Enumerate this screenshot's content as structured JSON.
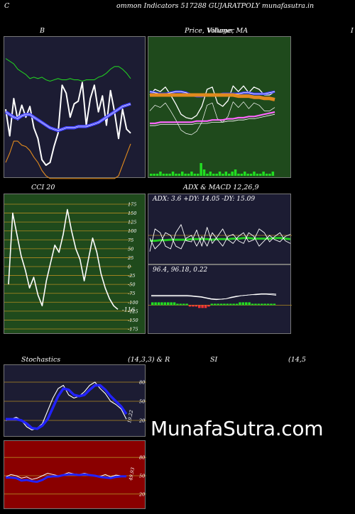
{
  "header": {
    "left_letter": "C",
    "title": "ommon  Indicators 517288  GUJARATPOLY munafasutra.in"
  },
  "labels": {
    "bb": "B",
    "price_title": "Price,  Volume,  MA",
    "price_title_overlap": "Villager",
    "right_edge": "I",
    "cci": "CCI 20",
    "adx_macd": "ADX  & MACD 12,26,9",
    "adx_values": "ADX: 3.6  +DY: 14.05 -DY: 15.09",
    "macd_values": "96.4,  96.18,  0.22",
    "stoch_left": "Stochastics",
    "stoch_params": "(14,3,3) & R",
    "rsi_label": "SI",
    "rsi_params": "(14,5"
  },
  "watermark": "MunafaSutra.com",
  "colors": {
    "panel_navy": "#1c1c33",
    "panel_green": "#1f4a1c",
    "panel_red": "#8a0000",
    "orange": "#e08a1e",
    "blue": "#2222ff",
    "bright_green": "#22dd22"
  },
  "chart_data": [
    {
      "type": "line",
      "name_ref": "bollinger",
      "ylim": [
        0,
        100
      ],
      "series": [
        {
          "role": "upper",
          "color": "#22cc22",
          "values": [
            88,
            86,
            84,
            80,
            78,
            76,
            73,
            74,
            73,
            74,
            72,
            71,
            72,
            73,
            72,
            72,
            73,
            72,
            72,
            71,
            72,
            72,
            72,
            74,
            75,
            77,
            80,
            82,
            82,
            80,
            77,
            73
          ]
        },
        {
          "role": "price",
          "color": "#ffffff",
          "values": [
            50,
            30,
            58,
            42,
            53,
            44,
            52,
            36,
            28,
            12,
            8,
            10,
            22,
            32,
            68,
            62,
            44,
            54,
            56,
            70,
            38,
            58,
            68,
            48,
            60,
            38,
            64,
            48,
            28,
            50,
            35,
            32
          ]
        },
        {
          "role": "middle",
          "color": "#3a3aff",
          "values": [
            48,
            46,
            44,
            43,
            45,
            46,
            46,
            44,
            42,
            40,
            38,
            36,
            35,
            34,
            35,
            36,
            36,
            36,
            37,
            37,
            37,
            38,
            39,
            40,
            42,
            44,
            46,
            48,
            50,
            52,
            53,
            54
          ]
        },
        {
          "role": "lower",
          "color": "#e08a1e",
          "values": [
            10,
            17,
            26,
            26,
            23,
            22,
            19,
            14,
            10,
            4,
            0,
            -2,
            -2,
            -2,
            -2,
            -2,
            -2,
            -2,
            -2,
            -2,
            -2,
            -2,
            -2,
            -2,
            -2,
            -2,
            -2,
            -2,
            0,
            8,
            16,
            24
          ]
        }
      ]
    },
    {
      "type": "line",
      "name_ref": "price_volume_ma",
      "ylim": [
        0,
        100
      ],
      "series": [
        {
          "role": "price",
          "color": "#ffffff",
          "values": [
            55,
            60,
            58,
            62,
            55,
            47,
            38,
            35,
            34,
            37,
            45,
            60,
            62,
            48,
            45,
            50,
            63,
            58,
            63,
            57,
            62,
            60,
            55,
            55,
            58
          ]
        },
        {
          "role": "ma_blue",
          "color": "#3a3aff",
          "values": [
            58,
            57,
            56,
            56,
            57,
            58,
            58,
            57,
            55,
            54,
            54,
            55,
            55,
            55,
            56,
            56,
            56,
            56,
            57,
            57,
            56,
            56,
            56,
            57,
            58
          ]
        },
        {
          "role": "ma_orange",
          "color": "#e08a1e",
          "values": [
            55,
            55,
            55,
            55,
            55,
            55,
            55,
            55,
            55,
            55,
            55,
            55,
            55,
            55,
            55,
            55,
            55,
            54,
            54,
            54,
            53,
            53,
            52,
            52,
            51
          ]
        },
        {
          "role": "ma_pink",
          "color": "#ff66ff",
          "values": [
            30,
            30,
            31,
            31,
            31,
            31,
            31,
            31,
            31,
            32,
            32,
            32,
            33,
            33,
            33,
            34,
            34,
            35,
            35,
            36,
            36,
            37,
            38,
            39,
            40
          ]
        }
      ],
      "volume": [
        1,
        1,
        1,
        2,
        1,
        1,
        1,
        2,
        1,
        1,
        2,
        1,
        1,
        2,
        1,
        1,
        6,
        3,
        1,
        2,
        1,
        1,
        2,
        1,
        2,
        1,
        2,
        3,
        1,
        1,
        2,
        1,
        1,
        2,
        1,
        1,
        2,
        1,
        1,
        2
      ]
    },
    {
      "type": "line",
      "name_ref": "cci",
      "ylim": [
        -175,
        175
      ],
      "tick_values": [
        175,
        150,
        125,
        100,
        75,
        50,
        25,
        0,
        -25,
        -50,
        -75,
        -100,
        -125,
        -150,
        -175
      ],
      "current_label": "-116",
      "series": [
        {
          "role": "cci",
          "color": "#ffffff",
          "values": [
            -50,
            150,
            90,
            30,
            -10,
            -60,
            -30,
            -80,
            -110,
            -40,
            10,
            60,
            40,
            90,
            160,
            100,
            50,
            20,
            -40,
            20,
            80,
            40,
            -20,
            -60,
            -90,
            -110,
            -120
          ]
        }
      ]
    },
    {
      "type": "line",
      "name_ref": "adx",
      "ylim": [
        0,
        100
      ],
      "series": [
        {
          "role": "adx",
          "color": "#22cc22",
          "values": [
            40,
            40,
            41,
            41,
            42,
            42,
            42,
            42,
            43,
            43,
            43,
            43,
            42,
            43,
            43,
            43,
            44,
            44,
            45,
            45,
            44,
            44,
            44,
            44,
            45,
            45,
            44,
            43
          ]
        },
        {
          "role": "plus_di",
          "color": "#ffffff",
          "values": [
            20,
            62,
            55,
            30,
            25,
            55,
            70,
            40,
            38,
            60,
            30,
            65,
            35,
            48,
            62,
            42,
            35,
            48,
            55,
            38,
            42,
            62,
            55,
            38,
            48,
            55,
            40,
            35
          ]
        },
        {
          "role": "minus_di",
          "color": "#ffffff",
          "values": [
            45,
            25,
            35,
            55,
            50,
            30,
            25,
            45,
            50,
            30,
            48,
            30,
            55,
            42,
            30,
            48,
            52,
            40,
            35,
            55,
            48,
            30,
            40,
            50,
            42,
            38,
            48,
            52
          ]
        }
      ]
    },
    {
      "type": "line",
      "name_ref": "macd",
      "ylim": [
        0,
        100
      ],
      "series": [
        {
          "role": "macd",
          "color": "#ffffff",
          "values": [
            66,
            66,
            66,
            66,
            66,
            66,
            66,
            66,
            66,
            65,
            64,
            62,
            60,
            59,
            60,
            61,
            64,
            66,
            67,
            68,
            69,
            69,
            70,
            70,
            69,
            68
          ]
        },
        {
          "role": "signal",
          "color": "#ffffff",
          "values": [
            68,
            68,
            68,
            68,
            68,
            68,
            68,
            68,
            67,
            66,
            65,
            63,
            61,
            60,
            60,
            61,
            63,
            65,
            67,
            68,
            69,
            70,
            71,
            71,
            71,
            70
          ]
        }
      ],
      "histogram": [
        2,
        2,
        2,
        2,
        2,
        2,
        2,
        2,
        1,
        1,
        1,
        1,
        -1,
        -1,
        -1,
        -2,
        -2,
        -2,
        -1,
        1,
        1,
        1,
        1,
        1,
        1,
        1,
        1,
        1,
        2,
        2,
        2,
        2,
        1,
        1,
        1,
        1,
        1,
        1,
        1,
        1
      ]
    },
    {
      "type": "line",
      "name_ref": "stochastics",
      "ylim": [
        0,
        100
      ],
      "tick_values": [
        80,
        50,
        20
      ],
      "current_label": "19.22",
      "series": [
        {
          "role": "k",
          "color": "#ffffff",
          "values": [
            20,
            22,
            25,
            20,
            10,
            5,
            8,
            15,
            35,
            55,
            70,
            75,
            60,
            55,
            58,
            65,
            75,
            80,
            70,
            62,
            50,
            45,
            38,
            22
          ]
        },
        {
          "role": "d",
          "color": "#2222ff",
          "values": [
            22,
            22,
            22,
            20,
            15,
            8,
            7,
            12,
            22,
            40,
            58,
            70,
            68,
            60,
            58,
            60,
            68,
            75,
            75,
            68,
            58,
            50,
            42,
            30
          ]
        }
      ]
    },
    {
      "type": "line",
      "name_ref": "rsi",
      "ylim": [
        0,
        100
      ],
      "tick_values": [
        80,
        50,
        20
      ],
      "current_label": "49.93",
      "series": [
        {
          "role": "rsi",
          "color": "#ffffff",
          "values": [
            48,
            52,
            50,
            46,
            48,
            44,
            46,
            50,
            54,
            52,
            50,
            52,
            55,
            53,
            52,
            54,
            52,
            50,
            49,
            52,
            48,
            51,
            50,
            49
          ]
        },
        {
          "role": "smooth",
          "color": "#2222ff",
          "values": [
            47,
            47,
            46,
            42,
            43,
            41,
            40,
            43,
            48,
            49,
            49,
            51,
            52,
            52,
            51,
            52,
            51,
            50,
            48,
            47,
            46,
            48,
            49,
            49
          ]
        }
      ]
    }
  ]
}
